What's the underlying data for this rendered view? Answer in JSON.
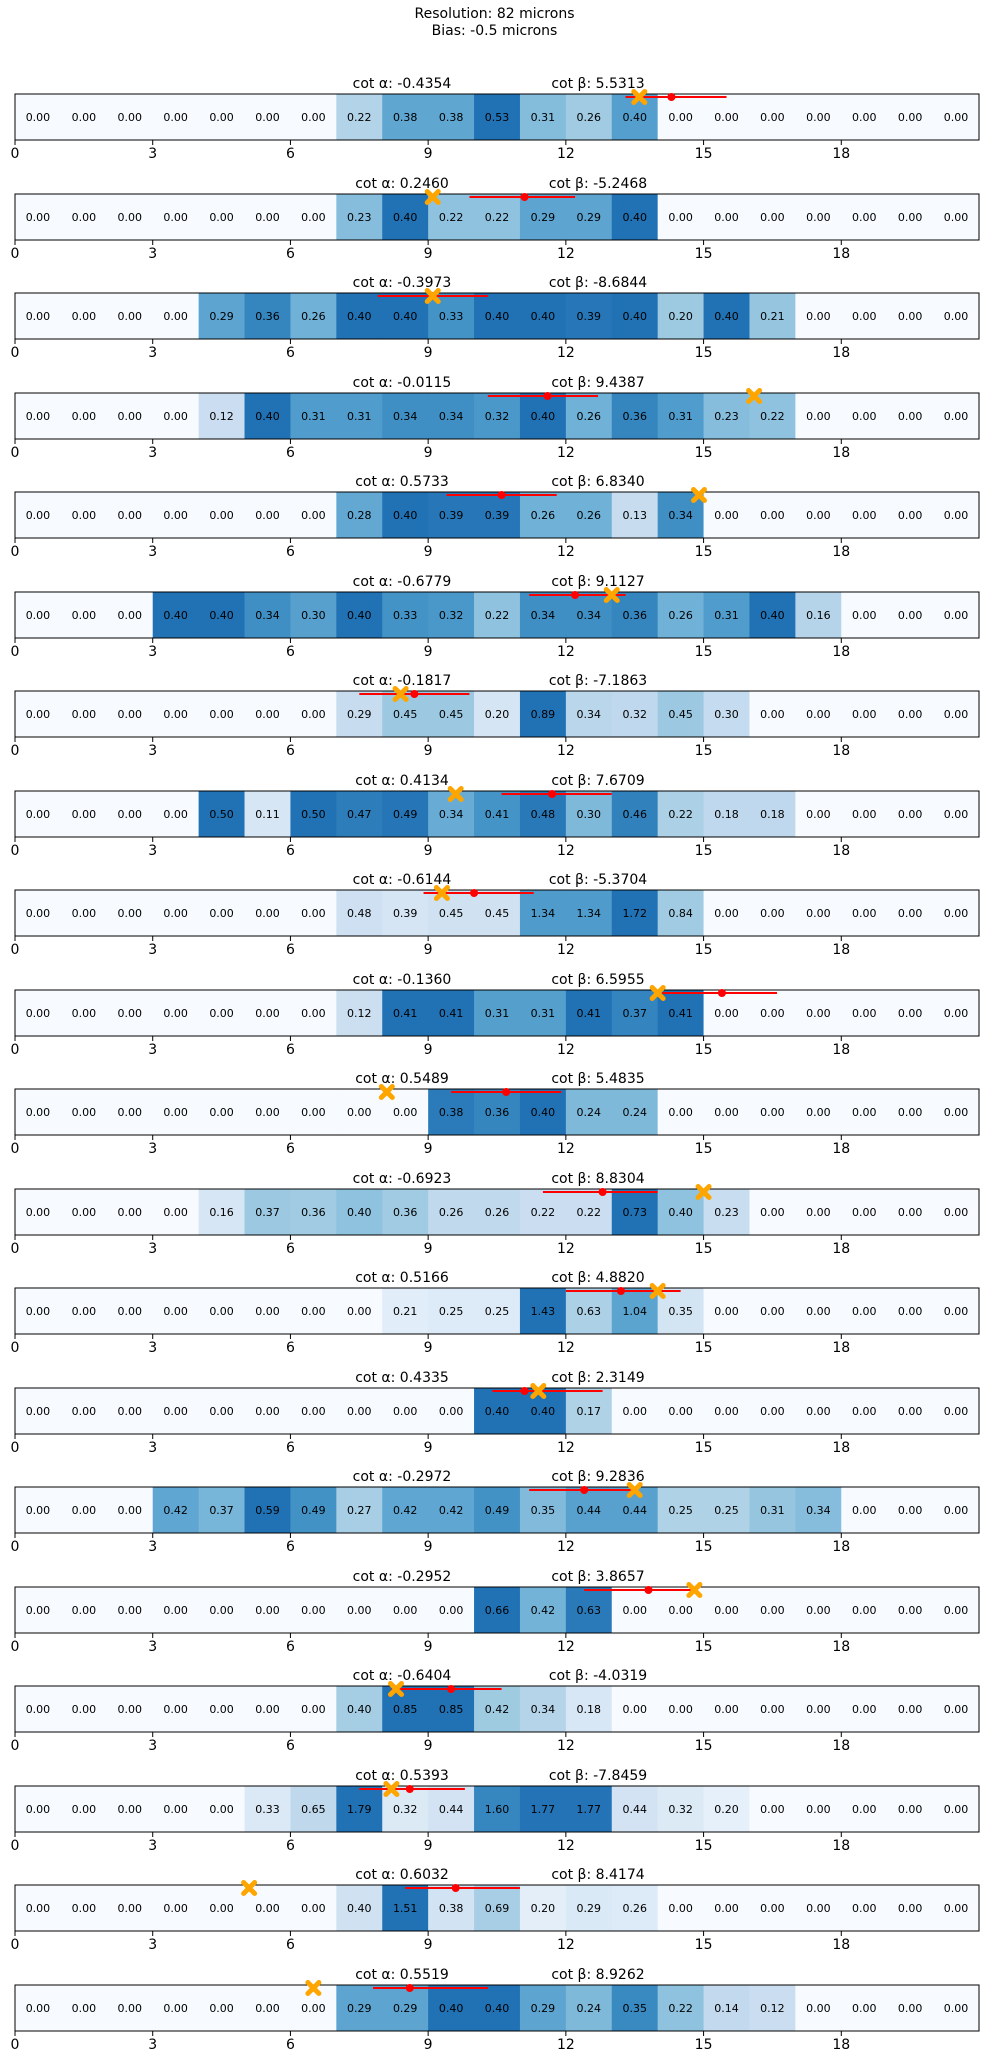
{
  "figure": {
    "title_line1": "Resolution: 82 microns",
    "title_line2": "Bias: -0.5 microns"
  },
  "style": {
    "marker_color": "#FFA500",
    "line_color": "#FF0000",
    "colormap": "Blues"
  },
  "chart_data": {
    "type": "heatmap",
    "x_ticks": [
      0,
      3,
      6,
      9,
      12,
      15,
      18
    ],
    "xlim": [
      0,
      21
    ],
    "n_cells": 21,
    "panels": [
      {
        "cot_alpha": "-0.4354",
        "cot_beta": "5.5313",
        "values": [
          0,
          0,
          0,
          0,
          0,
          0,
          0,
          0.22,
          0.38,
          0.38,
          0.53,
          0.31,
          0.26,
          0.4,
          0,
          0,
          0,
          0,
          0,
          0,
          0
        ],
        "cross_x": 13.6,
        "dot_x": 14.3,
        "seg": [
          13.3,
          15.5
        ]
      },
      {
        "cot_alpha": "0.2460",
        "cot_beta": "-5.2468",
        "values": [
          0,
          0,
          0,
          0,
          0,
          0,
          0,
          0.23,
          0.4,
          0.22,
          0.22,
          0.29,
          0.29,
          0.4,
          0,
          0,
          0,
          0,
          0,
          0,
          0
        ],
        "cross_x": 9.1,
        "dot_x": 11.1,
        "seg": [
          9.9,
          12.2
        ]
      },
      {
        "cot_alpha": "-0.3973",
        "cot_beta": "-8.6844",
        "values": [
          0,
          0,
          0,
          0,
          0.29,
          0.36,
          0.26,
          0.4,
          0.4,
          0.33,
          0.4,
          0.4,
          0.39,
          0.4,
          0.2,
          0.4,
          0.21,
          0,
          0,
          0,
          0
        ],
        "cross_x": 9.1,
        "dot_x": 9.1,
        "seg": [
          7.9,
          10.3
        ]
      },
      {
        "cot_alpha": "-0.0115",
        "cot_beta": "9.4387",
        "values": [
          0,
          0,
          0,
          0,
          0.12,
          0.4,
          0.31,
          0.31,
          0.34,
          0.34,
          0.32,
          0.4,
          0.26,
          0.36,
          0.31,
          0.23,
          0.22,
          0,
          0,
          0,
          0
        ],
        "cross_x": 16.1,
        "dot_x": 11.6,
        "seg": [
          10.3,
          12.7
        ]
      },
      {
        "cot_alpha": "0.5733",
        "cot_beta": "6.8340",
        "values": [
          0,
          0,
          0,
          0,
          0,
          0,
          0,
          0.28,
          0.4,
          0.39,
          0.39,
          0.26,
          0.26,
          0.13,
          0.34,
          0,
          0,
          0,
          0,
          0,
          0
        ],
        "cross_x": 14.9,
        "dot_x": 10.6,
        "seg": [
          9.4,
          11.8
        ]
      },
      {
        "cot_alpha": "-0.6779",
        "cot_beta": "9.1127",
        "values": [
          0,
          0,
          0,
          0.4,
          0.4,
          0.34,
          0.3,
          0.4,
          0.33,
          0.32,
          0.22,
          0.34,
          0.34,
          0.36,
          0.26,
          0.31,
          0.4,
          0.16,
          0,
          0,
          0
        ],
        "cross_x": 13.0,
        "dot_x": 12.2,
        "seg": [
          11.2,
          13.3
        ]
      },
      {
        "cot_alpha": "-0.1817",
        "cot_beta": "-7.1863",
        "values": [
          0,
          0,
          0,
          0,
          0,
          0,
          0,
          0.29,
          0.45,
          0.45,
          0.2,
          0.89,
          0.34,
          0.32,
          0.45,
          0.3,
          0,
          0,
          0,
          0,
          0
        ],
        "cross_x": 8.4,
        "dot_x": 8.7,
        "seg": [
          7.5,
          9.9
        ]
      },
      {
        "cot_alpha": "0.4134",
        "cot_beta": "7.6709",
        "values": [
          0,
          0,
          0,
          0,
          0.5,
          0.11,
          0.5,
          0.47,
          0.49,
          0.34,
          0.41,
          0.48,
          0.3,
          0.46,
          0.22,
          0.18,
          0.18,
          0,
          0,
          0,
          0
        ],
        "cross_x": 9.6,
        "dot_x": 11.7,
        "seg": [
          10.6,
          13.0
        ]
      },
      {
        "cot_alpha": "-0.6144",
        "cot_beta": "-5.3704",
        "values": [
          0,
          0,
          0,
          0,
          0,
          0,
          0,
          0.48,
          0.39,
          0.45,
          0.45,
          1.34,
          1.34,
          1.72,
          0.84,
          0,
          0,
          0,
          0,
          0,
          0
        ],
        "cross_x": 9.3,
        "dot_x": 10.0,
        "seg": [
          8.9,
          11.3
        ]
      },
      {
        "cot_alpha": "-0.1360",
        "cot_beta": "6.5955",
        "values": [
          0,
          0,
          0,
          0,
          0,
          0,
          0,
          0.12,
          0.41,
          0.41,
          0.31,
          0.31,
          0.41,
          0.37,
          0.41,
          0,
          0,
          0,
          0,
          0,
          0
        ],
        "cross_x": 14.0,
        "dot_x": 15.4,
        "seg": [
          14.1,
          16.6
        ]
      },
      {
        "cot_alpha": "0.5489",
        "cot_beta": "5.4835",
        "values": [
          0,
          0,
          0,
          0,
          0,
          0,
          0,
          0,
          0,
          0.38,
          0.36,
          0.4,
          0.24,
          0.24,
          0,
          0,
          0,
          0,
          0,
          0,
          0
        ],
        "cross_x": 8.1,
        "dot_x": 10.7,
        "seg": [
          9.5,
          11.9
        ]
      },
      {
        "cot_alpha": "-0.6923",
        "cot_beta": "8.8304",
        "values": [
          0,
          0,
          0,
          0,
          0.16,
          0.37,
          0.36,
          0.4,
          0.36,
          0.26,
          0.26,
          0.22,
          0.22,
          0.73,
          0.4,
          0.23,
          0,
          0,
          0,
          0,
          0
        ],
        "cross_x": 15.0,
        "dot_x": 12.8,
        "seg": [
          11.5,
          14.0
        ]
      },
      {
        "cot_alpha": "0.5166",
        "cot_beta": "4.8820",
        "values": [
          0,
          0,
          0,
          0,
          0,
          0,
          0,
          0,
          0.21,
          0.25,
          0.25,
          1.43,
          0.63,
          1.04,
          0.35,
          0,
          0,
          0,
          0,
          0,
          0
        ],
        "cross_x": 14.0,
        "dot_x": 13.2,
        "seg": [
          12.0,
          14.5
        ]
      },
      {
        "cot_alpha": "0.4335",
        "cot_beta": "2.3149",
        "values": [
          0,
          0,
          0,
          0,
          0,
          0,
          0,
          0,
          0,
          0,
          0.4,
          0.4,
          0.17,
          0,
          0,
          0,
          0,
          0,
          0,
          0,
          0
        ],
        "cross_x": 11.4,
        "dot_x": 11.1,
        "seg": [
          10.4,
          12.8
        ]
      },
      {
        "cot_alpha": "-0.2972",
        "cot_beta": "9.2836",
        "values": [
          0,
          0,
          0,
          0.42,
          0.37,
          0.59,
          0.49,
          0.27,
          0.42,
          0.42,
          0.49,
          0.35,
          0.44,
          0.44,
          0.25,
          0.25,
          0.31,
          0.34,
          0,
          0,
          0
        ],
        "cross_x": 13.5,
        "dot_x": 12.4,
        "seg": [
          11.2,
          13.5
        ]
      },
      {
        "cot_alpha": "-0.2952",
        "cot_beta": "3.8657",
        "values": [
          0,
          0,
          0,
          0,
          0,
          0,
          0,
          0,
          0,
          0,
          0.66,
          0.42,
          0.63,
          0,
          0,
          0,
          0,
          0,
          0,
          0,
          0
        ],
        "cross_x": 14.8,
        "dot_x": 13.8,
        "seg": [
          12.4,
          14.8
        ]
      },
      {
        "cot_alpha": "-0.6404",
        "cot_beta": "-4.0319",
        "values": [
          0,
          0,
          0,
          0,
          0,
          0,
          0,
          0.4,
          0.85,
          0.85,
          0.42,
          0.34,
          0.18,
          0,
          0,
          0,
          0,
          0,
          0,
          0,
          0
        ],
        "cross_x": 8.3,
        "dot_x": 9.5,
        "seg": [
          8.2,
          10.6
        ]
      },
      {
        "cot_alpha": "0.5393",
        "cot_beta": "-7.8459",
        "values": [
          0,
          0,
          0,
          0,
          0,
          0.33,
          0.65,
          1.79,
          0.32,
          0.44,
          1.6,
          1.77,
          1.77,
          0.44,
          0.32,
          0.2,
          0,
          0,
          0,
          0,
          0
        ],
        "cross_x": 8.2,
        "dot_x": 8.6,
        "seg": [
          7.5,
          9.8
        ]
      },
      {
        "cot_alpha": "0.6032",
        "cot_beta": "8.4174",
        "values": [
          0,
          0,
          0,
          0,
          0,
          0,
          0,
          0.4,
          1.51,
          0.38,
          0.69,
          0.2,
          0.29,
          0.26,
          0,
          0,
          0,
          0,
          0,
          0,
          0
        ],
        "cross_x": 5.1,
        "dot_x": 9.6,
        "seg": [
          8.5,
          11.0
        ]
      },
      {
        "cot_alpha": "0.5519",
        "cot_beta": "8.9262",
        "values": [
          0,
          0,
          0,
          0,
          0,
          0,
          0,
          0.29,
          0.29,
          0.4,
          0.4,
          0.29,
          0.24,
          0.35,
          0.22,
          0.14,
          0.12,
          0,
          0,
          0,
          0
        ],
        "cross_x": 6.5,
        "dot_x": 8.6,
        "seg": [
          7.8,
          10.3
        ]
      }
    ]
  }
}
